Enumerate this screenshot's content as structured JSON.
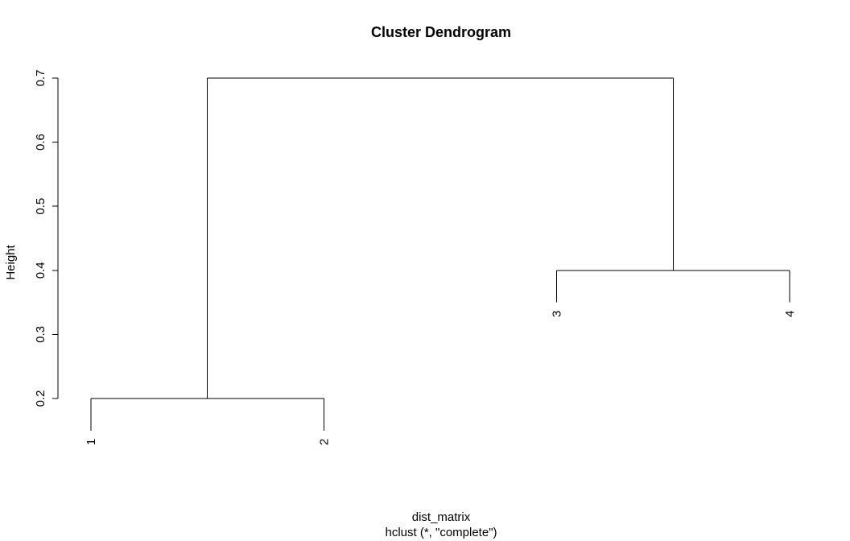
{
  "chart_data": {
    "type": "dendrogram",
    "title": "Cluster Dendrogram",
    "xlabel": "dist_matrix",
    "subtitle": "hclust (*, \"complete\")",
    "ylabel": "Height",
    "ylim": [
      0.2,
      0.7
    ],
    "yticks": [
      "0.2",
      "0.3",
      "0.4",
      "0.5",
      "0.6",
      "0.7"
    ],
    "leaves": [
      "1",
      "2",
      "3",
      "4"
    ],
    "merges": [
      {
        "left": "1",
        "right": "2",
        "height": 0.2
      },
      {
        "left": "3",
        "right": "4",
        "height": 0.4
      },
      {
        "left": "(1,2)",
        "right": "(3,4)",
        "height": 0.7
      }
    ],
    "leaf_label_height_offset": 0.05,
    "grid": false
  }
}
